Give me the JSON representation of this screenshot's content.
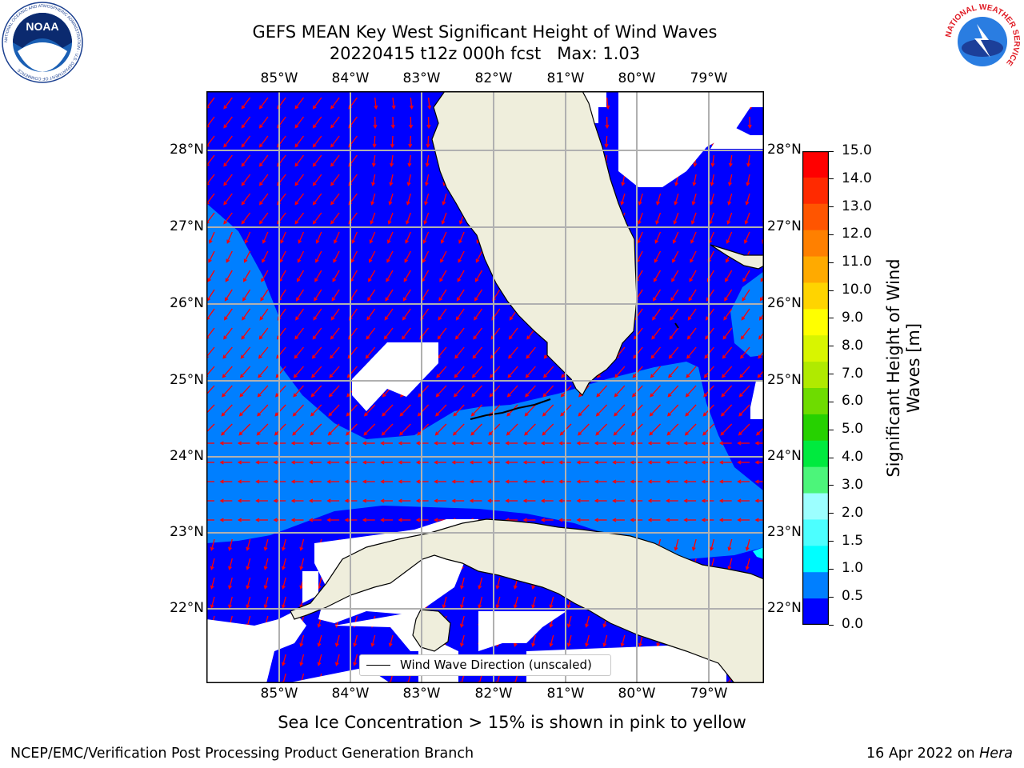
{
  "title_line1": "GEFS MEAN Key West Significant Height of Wind Waves",
  "title_line2": "20220415 t12z 000h fcst   Max: 1.03",
  "x_ticks": [
    "85°W",
    "84°W",
    "83°W",
    "82°W",
    "81°W",
    "80°W",
    "79°W"
  ],
  "y_ticks": [
    "28°N",
    "27°N",
    "26°N",
    "25°N",
    "24°N",
    "23°N",
    "22°N"
  ],
  "colorbar": {
    "label_line1": "Significant Height of Wind",
    "label_line2": "Waves [m]",
    "ticks": [
      "15.0",
      "14.0",
      "13.0",
      "12.0",
      "11.0",
      "10.0",
      "9.0",
      "8.0",
      "7.0",
      "6.0",
      "5.0",
      "4.0",
      "3.0",
      "2.0",
      "1.5",
      "1.0",
      "0.5",
      "0.0"
    ],
    "colors": [
      "#ff0000",
      "#ff2a00",
      "#ff5500",
      "#ff8000",
      "#ffaa00",
      "#ffd400",
      "#ffff00",
      "#d8f500",
      "#b0ea00",
      "#6edc00",
      "#26d100",
      "#00ea3e",
      "#4cf57a",
      "#9cffff",
      "#4cffff",
      "#00ffff",
      "#007fff",
      "#0000ff"
    ]
  },
  "legend_label": "Wind Wave Direction (unscaled)",
  "ice_note": "Sea Ice Concentration > 15% is shown in pink to yellow",
  "footer_left": "NCEP/EMC/Verification Post Processing Product Generation Branch",
  "footer_right_date": "16 Apr 2022 on ",
  "footer_right_host": "Hera",
  "logo_left": {
    "text": "NOAA",
    "ring_text": "NATIONAL OCEANIC AND ATMOSPHERIC ADMINISTRATION · U.S. DEPARTMENT OF COMMERCE"
  },
  "logo_right": {
    "ring_text": "NATIONAL WEATHER SERVICE"
  },
  "map_colors": {
    "land": "#efeedc",
    "wave_low": "#0000ff",
    "wave_mid": "#007fff",
    "arrow": "#ff0000",
    "grid": "#b0b0b0",
    "missing": "#ffffff"
  }
}
